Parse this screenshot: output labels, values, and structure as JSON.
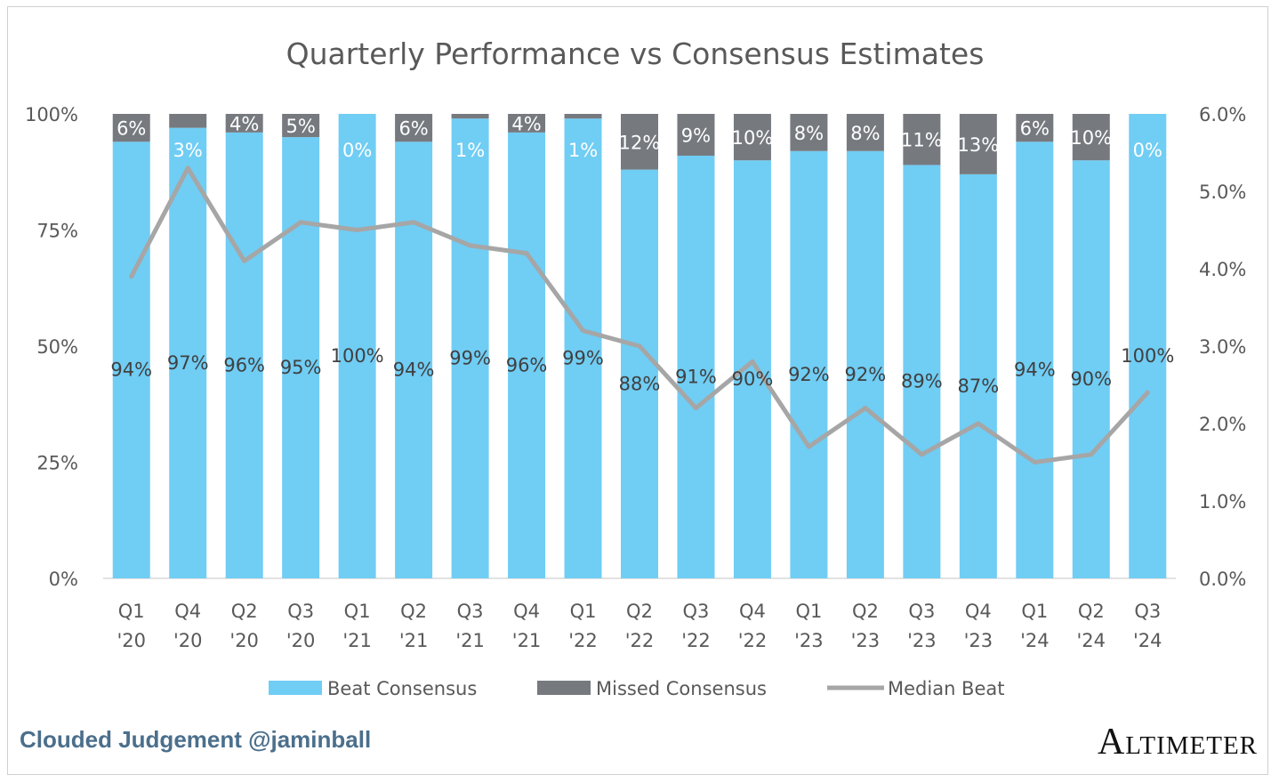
{
  "chart_data": {
    "type": "bar",
    "stacked": true,
    "title": "Quarterly Performance vs Consensus Estimates",
    "categories": [
      [
        "Q1",
        "'20"
      ],
      [
        "Q4",
        "'20"
      ],
      [
        "Q2",
        "'20"
      ],
      [
        "Q3",
        "'20"
      ],
      [
        "Q1",
        "'21"
      ],
      [
        "Q2",
        "'21"
      ],
      [
        "Q3",
        "'21"
      ],
      [
        "Q4",
        "'21"
      ],
      [
        "Q1",
        "'22"
      ],
      [
        "Q2",
        "'22"
      ],
      [
        "Q3",
        "'22"
      ],
      [
        "Q4",
        "'22"
      ],
      [
        "Q1",
        "'23"
      ],
      [
        "Q2",
        "'23"
      ],
      [
        "Q3",
        "'23"
      ],
      [
        "Q4",
        "'23"
      ],
      [
        "Q1",
        "'24"
      ],
      [
        "Q2",
        "'24"
      ],
      [
        "Q3",
        "'24"
      ]
    ],
    "series": [
      {
        "name": "Beat Consensus",
        "axis": "left",
        "color": "#70cdf4",
        "values": [
          94,
          97,
          96,
          95,
          100,
          94,
          99,
          96,
          99,
          88,
          91,
          90,
          92,
          92,
          89,
          87,
          94,
          90,
          100
        ],
        "labels": [
          "94%",
          "97%",
          "96%",
          "95%",
          "100%",
          "94%",
          "99%",
          "96%",
          "99%",
          "88%",
          "91%",
          "90%",
          "92%",
          "92%",
          "89%",
          "87%",
          "94%",
          "90%",
          "100%"
        ]
      },
      {
        "name": "Missed Consensus",
        "axis": "left",
        "color": "#767a7f",
        "values": [
          6,
          3,
          4,
          5,
          0,
          6,
          1,
          4,
          1,
          12,
          9,
          10,
          8,
          8,
          11,
          13,
          6,
          10,
          0
        ],
        "labels": [
          "6%",
          "3%",
          "4%",
          "5%",
          "0%",
          "6%",
          "1%",
          "4%",
          "1%",
          "12%",
          "9%",
          "10%",
          "8%",
          "8%",
          "11%",
          "13%",
          "6%",
          "10%",
          "0%"
        ]
      },
      {
        "name": "Median Beat",
        "type": "line",
        "axis": "right",
        "color": "#a6a6a6",
        "values": [
          3.9,
          5.3,
          4.1,
          4.6,
          4.5,
          4.6,
          4.3,
          4.2,
          3.2,
          3.0,
          2.2,
          2.8,
          1.7,
          2.2,
          1.6,
          2.0,
          1.5,
          1.6,
          2.4
        ]
      }
    ],
    "y_left": {
      "ylim": [
        0,
        100
      ],
      "ticks": [
        0,
        25,
        50,
        75,
        100
      ],
      "tick_labels": [
        "0%",
        "25%",
        "50%",
        "75%",
        "100%"
      ]
    },
    "y_right": {
      "ylim": [
        0,
        6
      ],
      "ticks": [
        0,
        1,
        2,
        3,
        4,
        5,
        6
      ],
      "tick_labels": [
        "0.0%",
        "1.0%",
        "2.0%",
        "3.0%",
        "4.0%",
        "5.0%",
        "6.0%"
      ]
    },
    "grid": false,
    "legend_position": "bottom"
  },
  "footer": {
    "left_text": "Clouded Judgement @jaminball",
    "right_text": "Altimeter"
  }
}
